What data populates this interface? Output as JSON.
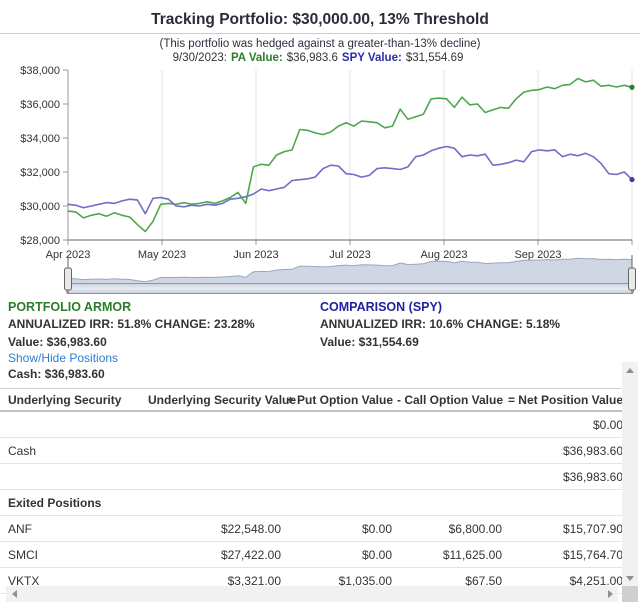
{
  "header": {
    "title": "Tracking Portfolio: $30,000.00, 13% Threshold",
    "subtitle": "(This portfolio was hedged against a greater-than-13% decline)",
    "readout": {
      "date": "9/30/2023:",
      "pa_label": "PA Value:",
      "pa_value": "$36,983.6",
      "spy_label": "SPY Value:",
      "spy_value": "$31,554.69"
    }
  },
  "chart_data": {
    "type": "line",
    "title": "Tracking Portfolio: $30,000.00, 13% Threshold",
    "subtitle": "(This portfolio was hedged against a greater-than-13% decline)",
    "xlabel": "",
    "ylabel": "",
    "x_axis_labels": [
      "Apr 2023",
      "May 2023",
      "Jun 2023",
      "Jul 2023",
      "Aug 2023",
      "Sep 2023"
    ],
    "y_axis_labels": [
      "$38,000",
      "$36,000",
      "$34,000",
      "$32,000",
      "$30,000",
      "$28,000"
    ],
    "ylim": [
      28000,
      38000
    ],
    "grid": "vertical month gridlines only",
    "legend_position": "none (series named in readout line above plot)",
    "end_markers": {
      "pa": 36983.6,
      "spy": 31554.69
    },
    "series": [
      {
        "name": "PA Value",
        "color": "#4ea64e",
        "values": [
          29700,
          29650,
          29300,
          29450,
          29550,
          29400,
          29600,
          29450,
          29350,
          28900,
          28500,
          29100,
          30100,
          30150,
          30100,
          30200,
          30100,
          30150,
          30250,
          30150,
          30300,
          30500,
          30800,
          30150,
          32300,
          32450,
          32400,
          33000,
          33200,
          33300,
          34500,
          34450,
          34300,
          34200,
          34350,
          34700,
          34900,
          34700,
          35000,
          34950,
          34900,
          34600,
          34700,
          35700,
          35100,
          35250,
          35400,
          36300,
          36350,
          36300,
          35800,
          36400,
          35950,
          36000,
          35500,
          35650,
          35800,
          35750,
          36300,
          36700,
          36800,
          36850,
          37000,
          36900,
          37100,
          37150,
          37500,
          37300,
          37400,
          37050,
          37100,
          37000,
          37100,
          36984
        ]
      },
      {
        "name": "SPY Value",
        "color": "#6e6ec8",
        "values": [
          30100,
          30050,
          29900,
          30000,
          30100,
          30200,
          30150,
          30300,
          30400,
          30350,
          29550,
          30450,
          30500,
          30400,
          30000,
          29950,
          30050,
          30000,
          30100,
          30050,
          30150,
          30400,
          30450,
          30550,
          30700,
          31000,
          30900,
          31000,
          31100,
          31500,
          31550,
          31600,
          31700,
          32200,
          32400,
          32350,
          31900,
          31850,
          31700,
          31800,
          32200,
          32250,
          32200,
          32150,
          32300,
          32900,
          33000,
          33250,
          33400,
          33500,
          33400,
          32900,
          33000,
          32950,
          33050,
          32400,
          32450,
          32550,
          32700,
          32600,
          33200,
          33300,
          33250,
          33300,
          32900,
          33050,
          32950,
          33100,
          32900,
          32500,
          31900,
          31850,
          32000,
          31555
        ]
      }
    ],
    "navigator": {
      "based_on": "PA Value series",
      "fill": "#cfd6e4",
      "stroke": "#9aa7c2"
    }
  },
  "portfolio": {
    "heading": "PORTFOLIO ARMOR",
    "irr_line": "ANNUALIZED IRR: 51.8% CHANGE: 23.28%",
    "value_line": "Value: $36,983.60"
  },
  "comparison": {
    "heading": "COMPARISON (SPY)",
    "irr_line": "ANNUALIZED IRR: 10.6% CHANGE: 5.18%",
    "value_line": "Value: $31,554.69"
  },
  "positions": {
    "toggle_label": "Show/Hide Positions",
    "cash_line": "Cash: $36,983.60"
  },
  "table": {
    "headers": [
      "Underlying Security",
      "Underlying Security Value",
      "+ Put Option Value",
      "- Call Option Value",
      "= Net Position Value"
    ],
    "rows": [
      {
        "type": "data",
        "cells": [
          "",
          "",
          "",
          "",
          "$0.00"
        ]
      },
      {
        "type": "data",
        "cells": [
          "Cash",
          "",
          "",
          "",
          "$36,983.60"
        ]
      },
      {
        "type": "data",
        "cells": [
          "",
          "",
          "",
          "",
          "$36,983.60"
        ]
      },
      {
        "type": "section",
        "cells": [
          "Exited Positions",
          "",
          "",
          "",
          ""
        ]
      },
      {
        "type": "data",
        "cells": [
          "ANF",
          "$22,548.00",
          "$0.00",
          "$6,800.00",
          "$15,707.90"
        ]
      },
      {
        "type": "data",
        "cells": [
          "SMCI",
          "$27,422.00",
          "$0.00",
          "$11,625.00",
          "$15,764.70"
        ]
      },
      {
        "type": "data",
        "cells": [
          "VKTX",
          "$3,321.00",
          "$1,035.00",
          "$67.50",
          "$4,251.00"
        ]
      }
    ]
  }
}
